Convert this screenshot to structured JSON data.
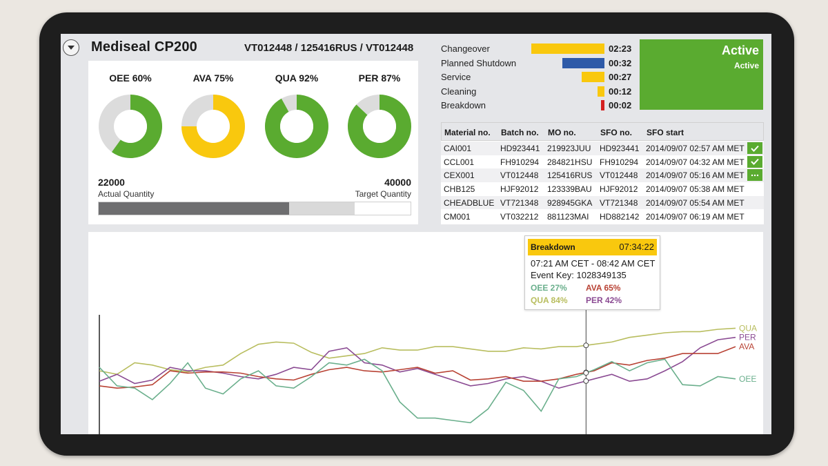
{
  "header": {
    "machine_name": "Mediseal CP200",
    "batch_ids": "VT012448 / 125416RUS / VT012448"
  },
  "kpis": [
    {
      "label": "OEE 60%",
      "value": 60,
      "color": "#5aab30"
    },
    {
      "label": "AVA 75%",
      "value": 75,
      "color": "#f9c80e"
    },
    {
      "label": "QUA 92%",
      "value": 92,
      "color": "#5aab30"
    },
    {
      "label": "PER 87%",
      "value": 87,
      "color": "#5aab30"
    }
  ],
  "quantity": {
    "actual_value": "22000",
    "actual_label": "Actual Quantity",
    "target_value": "40000",
    "target_label": "Target Quantity",
    "actual_fraction": 0.61,
    "target_fraction": 0.82
  },
  "events": [
    {
      "label": "Changeover",
      "time": "02:23",
      "color": "#f9c80e",
      "fraction": 1.0
    },
    {
      "label": "Planned Shutdown",
      "time": "00:32",
      "color": "#2e5aa8",
      "fraction": 0.58
    },
    {
      "label": "Service",
      "time": "00:27",
      "color": "#f9c80e",
      "fraction": 0.31
    },
    {
      "label": "Cleaning",
      "time": "00:12",
      "color": "#f9c80e",
      "fraction": 0.09
    },
    {
      "label": "Breakdown",
      "time": "00:02",
      "color": "#d42020",
      "fraction": 0.05
    }
  ],
  "status": {
    "title": "Active",
    "subtitle": "Active",
    "color": "#5aab30"
  },
  "orders": {
    "columns": [
      "Material no.",
      "Batch no.",
      "MO no.",
      "SFO no.",
      "SFO start"
    ],
    "rows": [
      {
        "cells": [
          "CAI001",
          "HD923441",
          "219923JUU",
          "HD923441",
          "2014/09/07 02:57 AM MET"
        ],
        "action": "check"
      },
      {
        "cells": [
          "CCL001",
          "FH910294",
          "284821HSU",
          "FH910294",
          "2014/09/07 04:32 AM MET"
        ],
        "action": "check"
      },
      {
        "cells": [
          "CEX001",
          "VT012448",
          "125416RUS",
          "VT012448",
          "2014/09/07 05:16 AM MET"
        ],
        "action": "more"
      },
      {
        "cells": [
          "CHB125",
          "HJF92012",
          "123339BAU",
          "HJF92012",
          "2014/09/07 05:38 AM MET"
        ],
        "action": ""
      },
      {
        "cells": [
          "CHEADBLUE",
          "VT721348",
          "928945GKA",
          "VT721348",
          "2014/09/07 05:54 AM MET"
        ],
        "action": ""
      },
      {
        "cells": [
          "CM001",
          "VT032212",
          "881123MAI",
          "HD882142",
          "2014/09/07 06:19 AM MET"
        ],
        "action": ""
      }
    ]
  },
  "tooltip": {
    "title": "Breakdown",
    "duration": "07:34:22",
    "range": "07:21 AM CET - 08:42 AM CET",
    "event_key": "Event Key: 1028349135",
    "oee": "OEE 27%",
    "ava": "AVA 65%",
    "qua": "QUA 84%",
    "per": "PER 42%"
  },
  "chart_data": {
    "type": "line",
    "title": "",
    "xlabel": "",
    "ylabel": "",
    "ylim": [
      0,
      100
    ],
    "grid": false,
    "series": [
      {
        "name": "QUA",
        "color": "#b8bd5e",
        "values": [
          55,
          52,
          62,
          60,
          56,
          54,
          58,
          60,
          70,
          78,
          80,
          79,
          71,
          66,
          68,
          70,
          75,
          73,
          73,
          76,
          76,
          74,
          72,
          72,
          75,
          74,
          76,
          76,
          78,
          80,
          84,
          86,
          88,
          89,
          89,
          91,
          92
        ]
      },
      {
        "name": "PER",
        "color": "#8a4a92",
        "values": [
          46,
          52,
          44,
          47,
          58,
          55,
          55,
          53,
          50,
          48,
          52,
          58,
          56,
          72,
          75,
          62,
          60,
          54,
          57,
          52,
          47,
          42,
          44,
          48,
          50,
          46,
          40,
          44,
          48,
          52,
          46,
          48,
          55,
          63,
          75,
          82,
          84
        ]
      },
      {
        "name": "AVA",
        "color": "#b84234",
        "values": [
          42,
          40,
          41,
          43,
          55,
          53,
          54,
          54,
          53,
          50,
          48,
          47,
          52,
          56,
          58,
          55,
          54,
          56,
          58,
          53,
          55,
          47,
          48,
          50,
          46,
          46,
          48,
          52,
          55,
          62,
          60,
          64,
          66,
          70,
          70,
          70,
          76
        ]
      },
      {
        "name": "OEE",
        "color": "#6aaf8c",
        "values": [
          58,
          42,
          40,
          30,
          44,
          62,
          40,
          35,
          48,
          55,
          42,
          40,
          50,
          62,
          60,
          65,
          55,
          28,
          14,
          14,
          12,
          10,
          22,
          45,
          38,
          20,
          48,
          50,
          56,
          63,
          55,
          62,
          65,
          43,
          42,
          50,
          48
        ]
      }
    ],
    "cursor_fraction": 0.765
  }
}
